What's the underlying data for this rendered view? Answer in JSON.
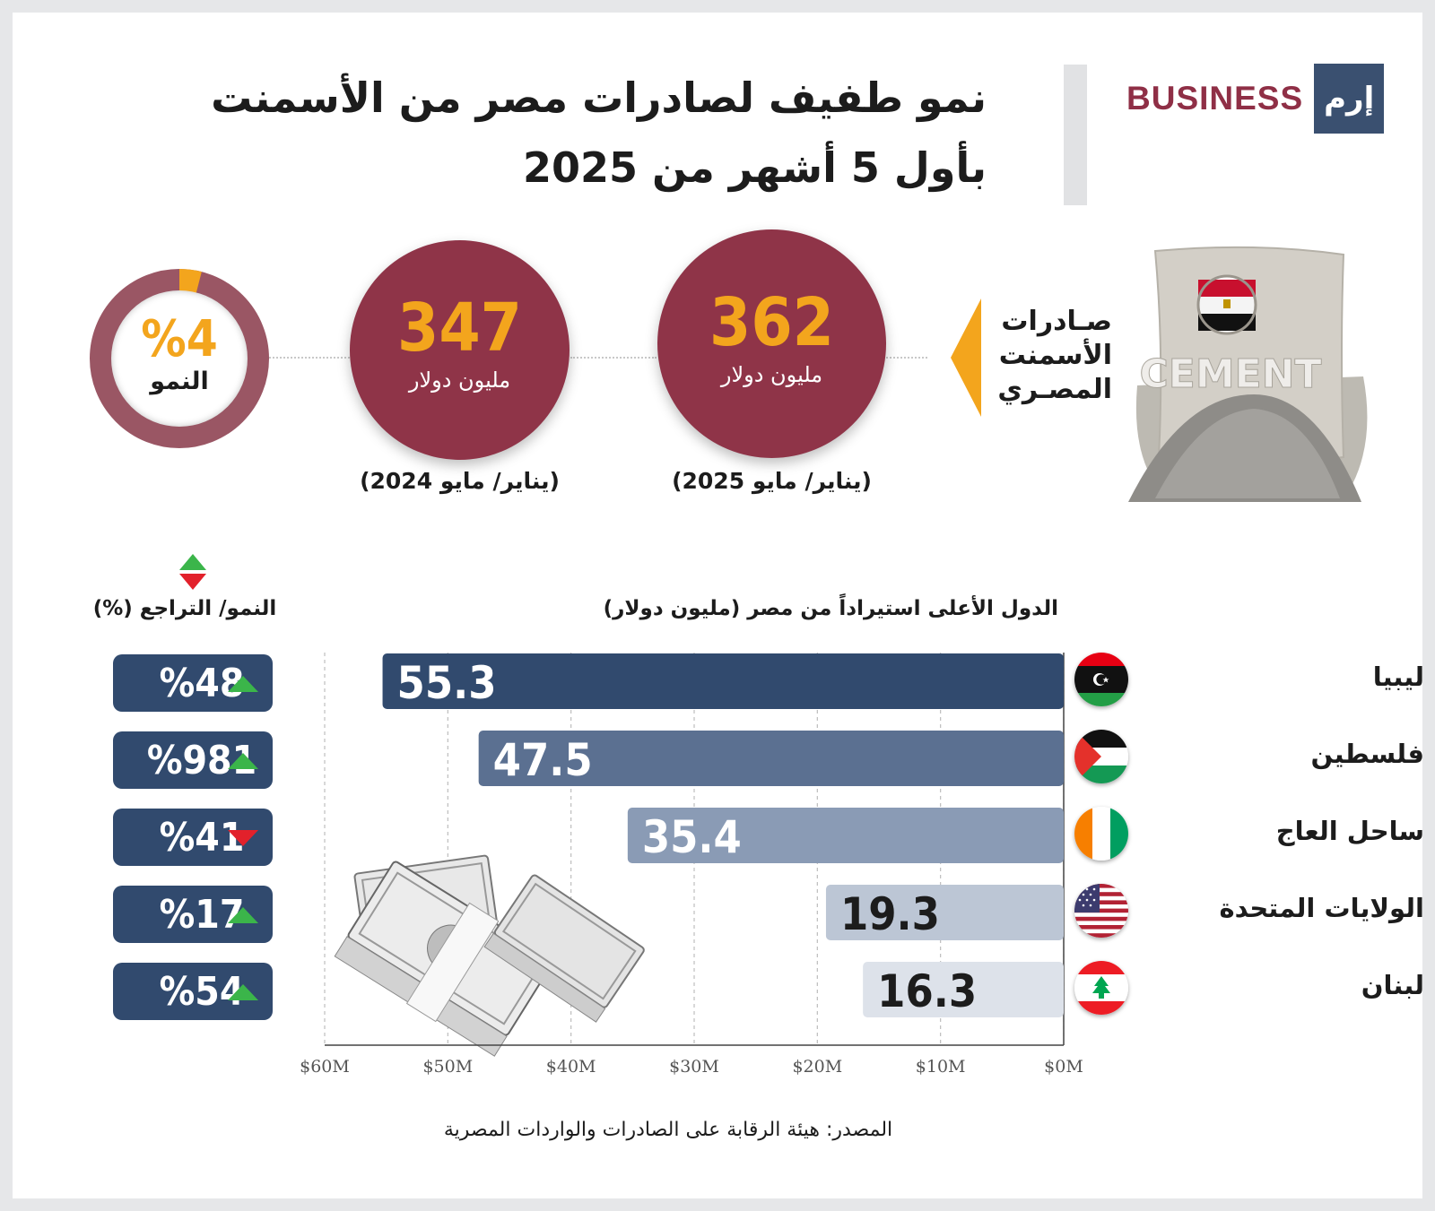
{
  "title_lines": [
    "نمو طفيف لصادرات مصر من الأسمنت",
    "بأول 5 أشهر من 2025"
  ],
  "brand": {
    "text": "BUSINESS",
    "logo": "إرم"
  },
  "exports_label": [
    "صـادرات",
    "الأسمنت",
    "المصـري"
  ],
  "kpis": [
    {
      "value": "362",
      "unit": "مليون دولار",
      "period": "(يناير/ مايو 2025)"
    },
    {
      "value": "347",
      "unit": "مليون دولار",
      "period": "(يناير/ مايو 2024)"
    }
  ],
  "growth_ring": {
    "value": "%4",
    "label": "النمو",
    "fraction": 0.04
  },
  "chart_title": "الدول الأعلى استيراداً من مصر (مليون دولار)",
  "growth_title": "النمو/ التراجع (%)",
  "source": "المصدر: هيئة الرقابة على الصادرات والواردات المصرية",
  "colors": {
    "primary": "#8f3448",
    "accent": "#f3a51d",
    "navy": "#314a6e",
    "up": "#3bb54a",
    "down": "#e2212b"
  },
  "chart_data": {
    "type": "bar",
    "orientation": "horizontal",
    "title": "الدول الأعلى استيراداً من مصر (مليون دولار)",
    "categories": [
      "ليبيا",
      "فلسطين",
      "ساحل العاج",
      "الولايات المتحدة",
      "لبنان"
    ],
    "values": [
      55.3,
      47.5,
      35.4,
      19.3,
      16.3
    ],
    "value_labels": [
      "55.3",
      "47.5",
      "35.4",
      "19.3",
      "16.3"
    ],
    "growth": [
      {
        "label": "%48",
        "direction": "up"
      },
      {
        "label": "%981",
        "direction": "up"
      },
      {
        "label": "%41",
        "direction": "down"
      },
      {
        "label": "%17",
        "direction": "up"
      },
      {
        "label": "%54",
        "direction": "up"
      }
    ],
    "xlim": [
      0,
      60
    ],
    "x_direction": "reversed",
    "ticks": [
      60,
      50,
      40,
      30,
      20,
      10,
      0
    ],
    "tick_labels": [
      "$60M",
      "$50M",
      "$40M",
      "$30M",
      "$20M",
      "$10M",
      "$0M"
    ],
    "grid": "vertical dashed",
    "bar_colors": [
      "#314a6e",
      "#5b7091",
      "#8a9bb5",
      "#bcc6d5",
      "#dde2ea"
    ],
    "label_colors": [
      "#ffffff",
      "#ffffff",
      "#ffffff",
      "#1c1c1c",
      "#1c1c1c"
    ]
  }
}
